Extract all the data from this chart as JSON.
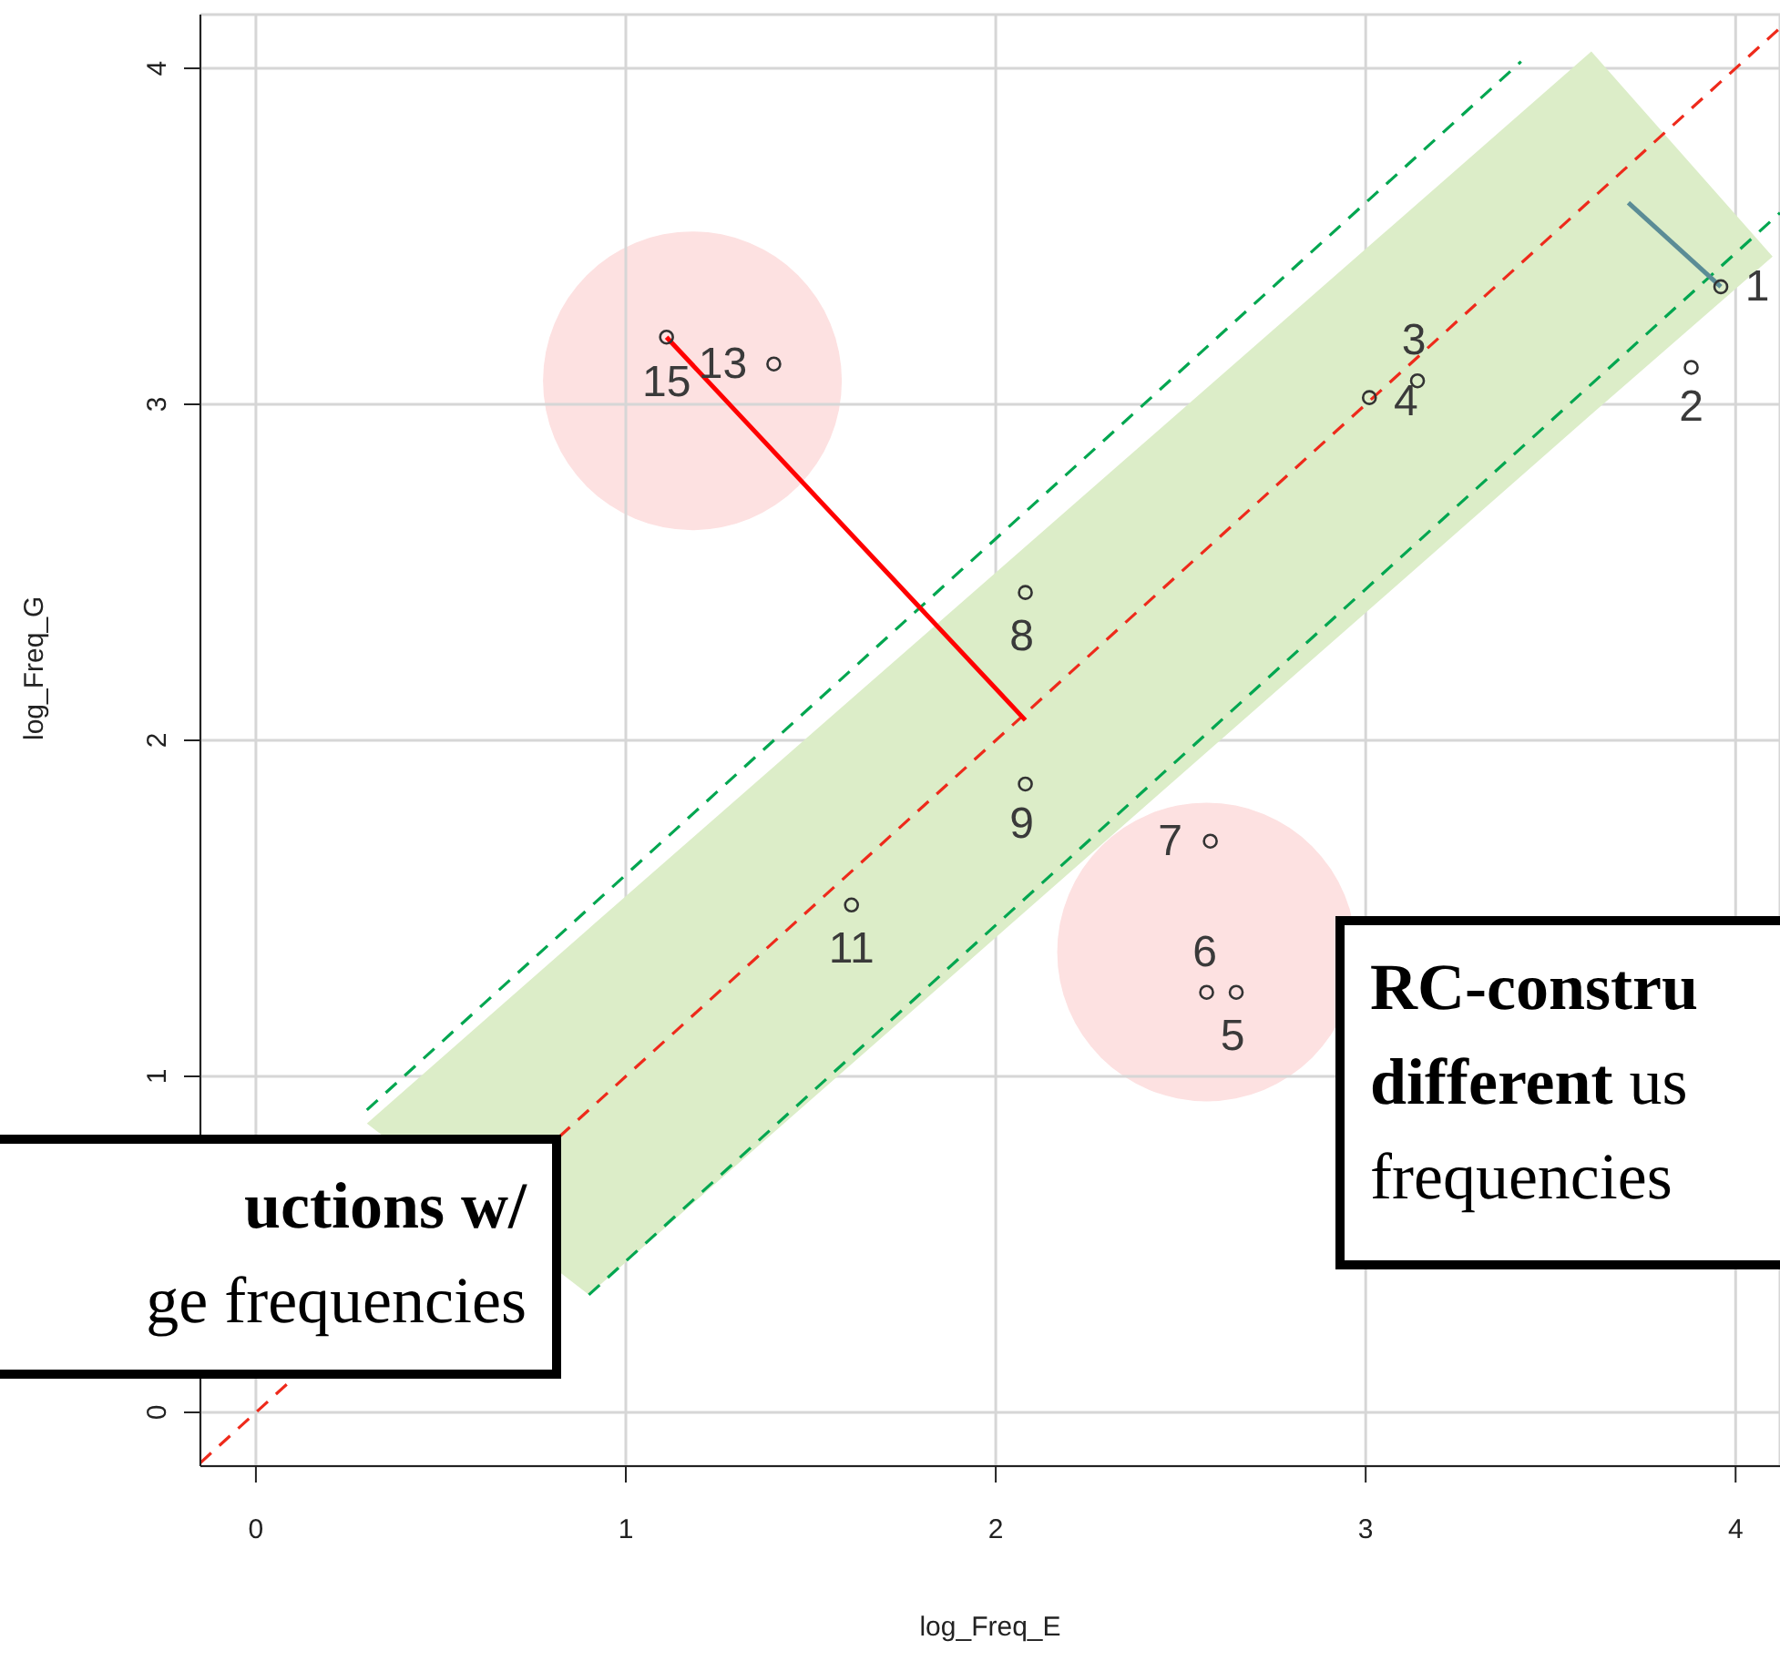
{
  "chart_data": {
    "type": "scatter",
    "xlabel": "log_Freq_E",
    "ylabel": "log_Freq_G",
    "xlim": [
      -0.15,
      4.12
    ],
    "ylim": [
      -0.16,
      4.16
    ],
    "xticks": [
      0,
      1,
      2,
      3,
      4
    ],
    "yticks": [
      0,
      1,
      2,
      3,
      4
    ],
    "grid": true,
    "legend": false,
    "annotations": [
      "uctions w/",
      "ge frequencies",
      "RC-constru",
      "different",
      "us",
      "frequencies",
      {
        "text": "1",
        "x": 3.96,
        "y": 3.35
      },
      {
        "text": "2",
        "x": 3.88,
        "y": 3.11
      },
      {
        "text": "3",
        "x": 3.14,
        "y": 3.07
      },
      {
        "text": "4",
        "x": 3.01,
        "y": 3.02
      },
      {
        "text": "5",
        "x": 2.65,
        "y": 1.25
      },
      {
        "text": "6",
        "x": 2.57,
        "y": 1.25
      },
      {
        "text": "7",
        "x": 2.58,
        "y": 1.7
      },
      {
        "text": "8",
        "x": 2.08,
        "y": 2.44
      },
      {
        "text": "9",
        "x": 2.08,
        "y": 1.87
      },
      {
        "text": "11",
        "x": 1.61,
        "y": 1.51
      },
      {
        "text": "13",
        "x": 1.4,
        "y": 3.12
      },
      {
        "text": "15",
        "x": 1.11,
        "y": 3.2
      }
    ],
    "series": [
      {
        "type": "bubble",
        "color": "#fde1e1",
        "x": [
          1.18,
          2.57
        ],
        "values": [
          3.07,
          1.37
        ],
        "sizes": [
          1,
          1
        ],
        "marker": "circle"
      },
      {
        "type": "line",
        "color": "#ee2a1b",
        "x": [
          -0.15,
          0.3,
          0.9,
          3.61,
          4.1,
          4.12
        ],
        "values": [
          -0.15,
          null,
          0.9,
          3.61,
          4.1,
          4.12
        ],
        "lower": [
          null,
          0.86,
          0.35,
          2.97,
          3.44,
          null
        ],
        "upper": [
          null,
          0.86,
          1.44,
          4.05,
          3.44,
          null
        ],
        "line_style": "dashed",
        "marker": "none"
      },
      {
        "type": "line",
        "color": "#00a650",
        "x": [
          0.3,
          3.42
        ],
        "values": [
          0.9,
          4.02
        ],
        "line_style": "dashed",
        "marker": "none"
      },
      {
        "type": "line",
        "color": "#00a650",
        "x": [
          0.9,
          4.12
        ],
        "values": [
          0.35,
          3.57
        ],
        "line_style": "dashed",
        "marker": "none"
      },
      {
        "type": "line",
        "color": "#ff0000",
        "x": [
          1.11,
          2.08
        ],
        "values": [
          3.2,
          2.06
        ],
        "line_style": "solid",
        "marker": "none"
      },
      {
        "type": "line",
        "color": "#5b8c96",
        "x": [
          3.71,
          3.96
        ],
        "values": [
          3.6,
          3.35
        ],
        "line_style": "solid",
        "marker": "none"
      },
      {
        "color": "#333333",
        "marker": "circle",
        "x": [
          3.96,
          3.88,
          3.14,
          3.01,
          2.65,
          2.57,
          2.58,
          2.08,
          2.08,
          1.61,
          1.4,
          1.11
        ],
        "values": [
          3.35,
          3.11,
          3.07,
          3.02,
          1.25,
          1.25,
          1.7,
          2.44,
          1.87,
          1.51,
          3.12,
          3.2
        ]
      }
    ]
  }
}
